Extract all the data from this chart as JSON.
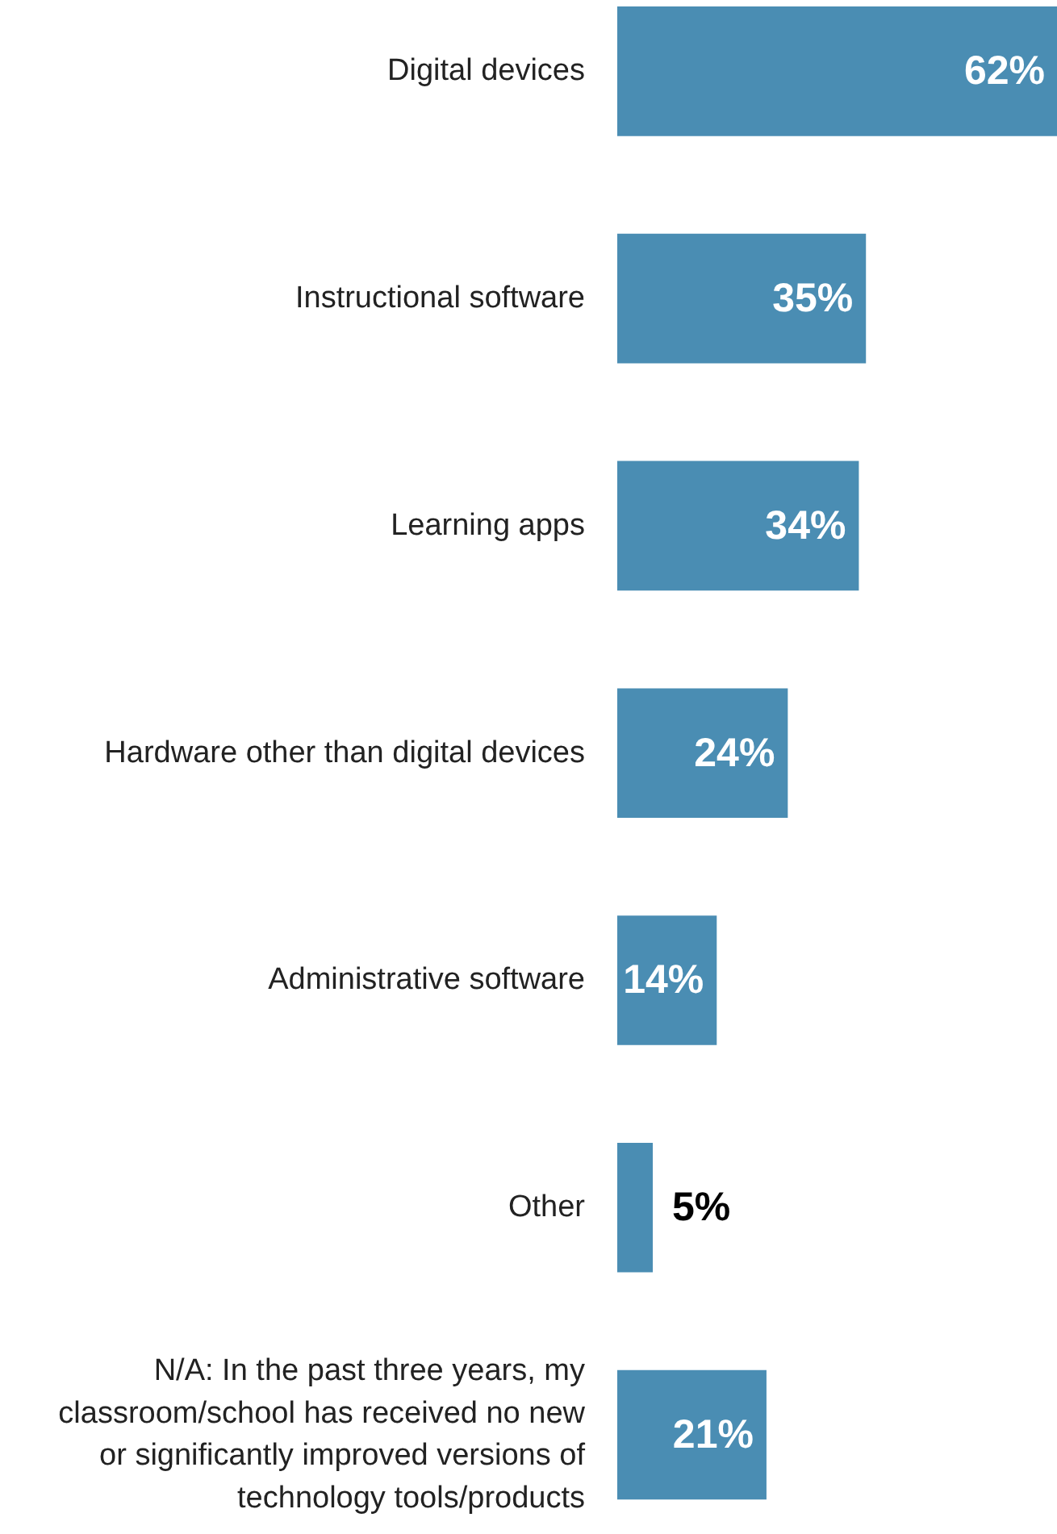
{
  "chart_data": {
    "type": "bar",
    "orientation": "horizontal",
    "color": "#4a8db3",
    "categories": [
      "Digital devices",
      "Instructional software",
      "Learning apps",
      "Hardware other than digital devices",
      "Administrative software",
      "Other",
      "N/A: In the past three years, my classroom/school has received no new or significantly improved versions of technology tools/products"
    ],
    "values": [
      62,
      35,
      34,
      24,
      14,
      5,
      21
    ],
    "value_labels": [
      "62%",
      "35%",
      "34%",
      "24%",
      "14%",
      "5%",
      "21%"
    ]
  }
}
